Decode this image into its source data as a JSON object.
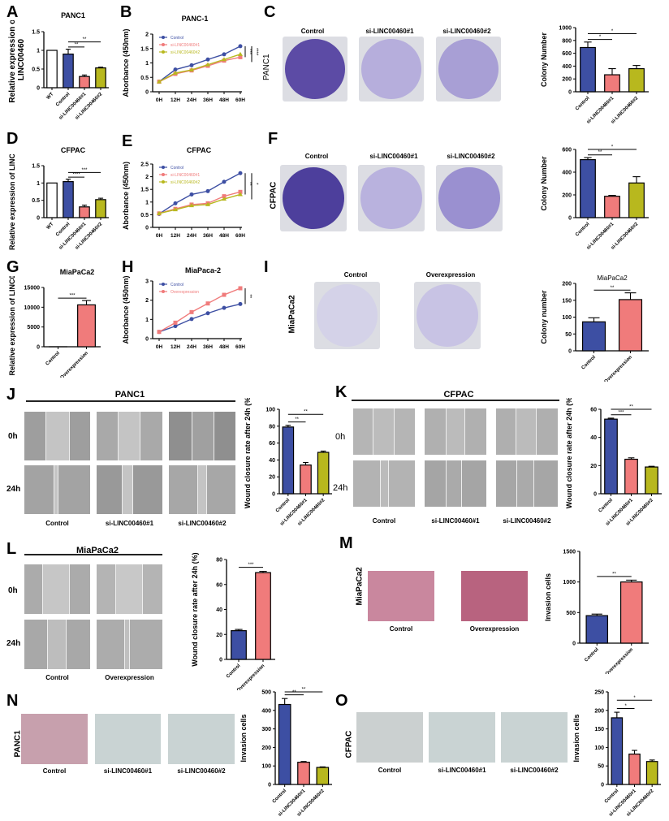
{
  "colors": {
    "control": "#3d4fa3",
    "si1": "#f07b7b",
    "si2": "#b8b81e",
    "wt": "#ffffff",
    "overexpression": "#f07b7b",
    "colony_stain": "#5a4aa8",
    "invasion_stain": "#c9306a"
  },
  "groups": {
    "control": "Control",
    "si1": "si-LINC00460#1",
    "si2": "si-LINC00460#2",
    "overexpression": "Overexpression",
    "wt": "WT"
  },
  "timepoints": [
    "0h",
    "24h"
  ],
  "panels": {
    "A": {
      "label": "A",
      "title": "PANC1",
      "ylabel_line1": "Relative expression of",
      "ylabel_line2": "LINC00460"
    },
    "B": {
      "label": "B",
      "title": "PANC-1",
      "ylabel": "Aborbance (450nm)"
    },
    "C": {
      "label": "C",
      "row_label": "PANC1",
      "ylabel": "Colony Number"
    },
    "D": {
      "label": "D",
      "title": "CFPAC",
      "ylabel_line1": "Relative expression of",
      "ylabel_line2": "LINC00460"
    },
    "E": {
      "label": "E",
      "title": "CFPAC",
      "ylabel": "Aborbance (450nm)"
    },
    "F": {
      "label": "F",
      "row_label": "CFPAC",
      "ylabel": "Colony Number"
    },
    "G": {
      "label": "G",
      "title": "MiaPaCa2",
      "ylabel_line1": "Relative expression of",
      "ylabel_line2": "LINC00460"
    },
    "H": {
      "label": "H",
      "title": "MiaPaca-2",
      "ylabel": "Aborbance (450nm)"
    },
    "I": {
      "label": "I",
      "row_label": "MiaPaCa2",
      "chart_title": "MiaPaCa2",
      "ylabel": "Colony number"
    },
    "J": {
      "label": "J",
      "header": "PANC1",
      "ylabel": "Wound closure rate after 24h (%)"
    },
    "K": {
      "label": "K",
      "header": "CFPAC",
      "ylabel": "Wound closure rate after 24h (%)"
    },
    "L": {
      "label": "L",
      "header": "MiaPaCa2",
      "ylabel": "Wound closure rate after 24h (%)"
    },
    "M": {
      "label": "M",
      "row_label": "MiaPaCa2",
      "ylabel": "Invasion cells"
    },
    "N": {
      "label": "N",
      "row_label": "PANC1",
      "ylabel": "Invasion cells"
    },
    "O": {
      "label": "O",
      "row_label": "CFPAC",
      "ylabel": "Invasion cells"
    }
  },
  "chart_data": [
    {
      "panel": "A",
      "type": "bar",
      "title": "PANC1",
      "ylabel": "Relative expression of LINC00460",
      "categories": [
        "WT",
        "Control",
        "si-LINC00460#1",
        "si-LINC00460#2"
      ],
      "values": [
        1.0,
        0.9,
        0.3,
        0.53
      ],
      "errors": [
        0,
        0.13,
        0.04,
        0.02
      ],
      "ylim": [
        0,
        1.5
      ],
      "yticks": [
        0.0,
        0.5,
        1.0,
        1.5
      ],
      "significance": [
        {
          "pair": [
            "Control",
            "si-LINC00460#1"
          ],
          "mark": "**"
        },
        {
          "pair": [
            "Control",
            "si-LINC00460#2"
          ],
          "mark": "**"
        }
      ]
    },
    {
      "panel": "B",
      "type": "line",
      "title": "PANC-1",
      "ylabel": "Aborbance (450nm)",
      "x": [
        "0H",
        "12H",
        "24H",
        "36H",
        "48H",
        "60H"
      ],
      "series": [
        {
          "name": "Control",
          "values": [
            0.35,
            0.77,
            0.92,
            1.12,
            1.3,
            1.58
          ]
        },
        {
          "name": "si-LINC00460#1",
          "values": [
            0.35,
            0.62,
            0.74,
            0.9,
            1.08,
            1.2
          ]
        },
        {
          "name": "si-LINC00460#2",
          "values": [
            0.35,
            0.65,
            0.76,
            0.94,
            1.12,
            1.3
          ]
        }
      ],
      "ylim": [
        0,
        2.0
      ],
      "yticks": [
        0.0,
        0.5,
        1.0,
        1.5,
        2.0
      ],
      "significance": [
        "***",
        "****"
      ]
    },
    {
      "panel": "C",
      "type": "bar",
      "ylabel": "Colony Number",
      "categories": [
        "Control",
        "si-LINC00460#1",
        "si-LINC00460#2"
      ],
      "values": [
        690,
        265,
        360
      ],
      "errors": [
        85,
        95,
        50
      ],
      "ylim": [
        0,
        1000
      ],
      "yticks": [
        0,
        200,
        400,
        600,
        800,
        1000
      ],
      "significance": [
        {
          "pair": [
            "Control",
            "si-LINC00460#1"
          ],
          "mark": "*"
        },
        {
          "pair": [
            "Control",
            "si-LINC00460#2"
          ],
          "mark": "*"
        }
      ]
    },
    {
      "panel": "D",
      "type": "bar",
      "title": "CFPAC",
      "ylabel": "Relative expression of LINC00460",
      "categories": [
        "WT",
        "Control",
        "si-LINC00460#1",
        "si-LINC00460#2"
      ],
      "values": [
        1.0,
        1.04,
        0.31,
        0.52
      ],
      "errors": [
        0,
        0.07,
        0.05,
        0.04
      ],
      "ylim": [
        0,
        1.5
      ],
      "yticks": [
        0.0,
        0.5,
        1.0,
        1.5
      ],
      "significance": [
        {
          "pair": [
            "Control",
            "si-LINC00460#1"
          ],
          "mark": "****"
        },
        {
          "pair": [
            "Control",
            "si-LINC00460#2"
          ],
          "mark": "***"
        }
      ]
    },
    {
      "panel": "E",
      "type": "line",
      "title": "CFPAC",
      "ylabel": "Aborbance (450nm)",
      "x": [
        "0H",
        "12H",
        "24H",
        "36H",
        "48H",
        "60H"
      ],
      "series": [
        {
          "name": "Control",
          "values": [
            0.53,
            0.95,
            1.3,
            1.43,
            1.8,
            2.14
          ]
        },
        {
          "name": "si-LINC00460#1",
          "values": [
            0.55,
            0.73,
            0.9,
            0.95,
            1.23,
            1.4
          ]
        },
        {
          "name": "si-LINC00460#2",
          "values": [
            0.55,
            0.7,
            0.86,
            0.9,
            1.12,
            1.3
          ]
        }
      ],
      "ylim": [
        0,
        2.5
      ],
      "yticks": [
        0.0,
        0.5,
        1.0,
        1.5,
        2.0,
        2.5
      ],
      "significance": [
        "**",
        "*"
      ]
    },
    {
      "panel": "F",
      "type": "bar",
      "ylabel": "Colony Number",
      "categories": [
        "Control",
        "si-LINC00460#1",
        "si-LINC00460#2"
      ],
      "values": [
        510,
        188,
        305
      ],
      "errors": [
        18,
        8,
        55
      ],
      "ylim": [
        0,
        600
      ],
      "yticks": [
        0,
        200,
        400,
        600
      ],
      "significance": [
        {
          "pair": [
            "Control",
            "si-LINC00460#1"
          ],
          "mark": "**"
        },
        {
          "pair": [
            "Control",
            "si-LINC00460#2"
          ],
          "mark": "*"
        }
      ]
    },
    {
      "panel": "G",
      "type": "bar",
      "title": "MiaPaCa2",
      "ylabel": "Relative expression of LINC00460",
      "categories": [
        "Control",
        "Overexpression"
      ],
      "values": [
        1,
        10600
      ],
      "errors": [
        0,
        1100
      ],
      "ylim": [
        0,
        15000
      ],
      "yticks": [
        0,
        5000,
        10000,
        15000
      ],
      "significance": [
        {
          "pair": [
            "Control",
            "Overexpression"
          ],
          "mark": "***"
        }
      ]
    },
    {
      "panel": "H",
      "type": "line",
      "title": "MiaPaca-2",
      "ylabel": "Aborbance (450nm)",
      "x": [
        "0H",
        "12H",
        "24H",
        "36H",
        "48H",
        "60H"
      ],
      "series": [
        {
          "name": "Control",
          "values": [
            0.35,
            0.65,
            1.02,
            1.32,
            1.6,
            1.8
          ]
        },
        {
          "name": "Overexpression",
          "values": [
            0.35,
            0.83,
            1.38,
            1.83,
            2.28,
            2.62
          ]
        }
      ],
      "ylim": [
        0,
        3
      ],
      "yticks": [
        0,
        1,
        2,
        3
      ],
      "significance": [
        "**"
      ]
    },
    {
      "panel": "I",
      "type": "bar",
      "title": "MiaPaCa2",
      "ylabel": "Colony number",
      "categories": [
        "Control",
        "Overexpression"
      ],
      "values": [
        86,
        152
      ],
      "errors": [
        12,
        20
      ],
      "ylim": [
        0,
        200
      ],
      "yticks": [
        0,
        50,
        100,
        150,
        200
      ],
      "significance": [
        {
          "pair": [
            "Control",
            "Overexpression"
          ],
          "mark": "**"
        }
      ]
    },
    {
      "panel": "J",
      "type": "bar",
      "ylabel": "Wound closure rate after 24h (%)",
      "categories": [
        "Control",
        "si-LINC00460#1",
        "si-LINC00460#2"
      ],
      "values": [
        79,
        34,
        49
      ],
      "errors": [
        2,
        3,
        1.5
      ],
      "ylim": [
        0,
        100
      ],
      "yticks": [
        0,
        20,
        40,
        60,
        80,
        100
      ],
      "significance": [
        {
          "pair": [
            "Control",
            "si-LINC00460#1"
          ],
          "mark": "**"
        },
        {
          "pair": [
            "Control",
            "si-LINC00460#2"
          ],
          "mark": "**"
        }
      ]
    },
    {
      "panel": "K",
      "type": "bar",
      "ylabel": "Wound closure rate after 24h (%)",
      "categories": [
        "Control",
        "si-LINC00460#1",
        "si-LINC00460#2"
      ],
      "values": [
        53,
        24.5,
        19
      ],
      "errors": [
        0.7,
        1,
        0.5
      ],
      "ylim": [
        0,
        60
      ],
      "yticks": [
        0,
        20,
        40,
        60
      ],
      "significance": [
        {
          "pair": [
            "Control",
            "si-LINC00460#1"
          ],
          "mark": "***"
        },
        {
          "pair": [
            "Control",
            "si-LINC00460#2"
          ],
          "mark": "**"
        }
      ]
    },
    {
      "panel": "L",
      "type": "bar",
      "ylabel": "Wound closure rate after 24h (%)",
      "categories": [
        "Control",
        "Overexpression"
      ],
      "values": [
        23,
        69.5
      ],
      "errors": [
        1,
        1
      ],
      "ylim": [
        0,
        80
      ],
      "yticks": [
        0,
        20,
        40,
        60,
        80
      ],
      "significance": [
        {
          "pair": [
            "Control",
            "Overexpression"
          ],
          "mark": "***"
        }
      ]
    },
    {
      "panel": "M",
      "type": "bar",
      "ylabel": "Invasion cells",
      "categories": [
        "Control",
        "Overexpression"
      ],
      "values": [
        450,
        1000
      ],
      "errors": [
        25,
        30
      ],
      "ylim": [
        0,
        1500
      ],
      "yticks": [
        0,
        500,
        1000,
        1500
      ],
      "significance": [
        {
          "pair": [
            "Control",
            "Overexpression"
          ],
          "mark": "**"
        }
      ]
    },
    {
      "panel": "N",
      "type": "bar",
      "ylabel": "Invasion cells",
      "categories": [
        "Control",
        "si-LINC00460#1",
        "si-LINC00460#2"
      ],
      "values": [
        432,
        120,
        92
      ],
      "errors": [
        32,
        4,
        3
      ],
      "ylim": [
        0,
        500
      ],
      "yticks": [
        0,
        100,
        200,
        300,
        400,
        500
      ],
      "significance": [
        {
          "pair": [
            "Control",
            "si-LINC00460#1"
          ],
          "mark": "**"
        },
        {
          "pair": [
            "Control",
            "si-LINC00460#2"
          ],
          "mark": "**"
        }
      ]
    },
    {
      "panel": "O",
      "type": "bar",
      "ylabel": "Invasion cells",
      "categories": [
        "Control",
        "si-LINC00460#1",
        "si-LINC00460#2"
      ],
      "values": [
        180,
        82,
        62
      ],
      "errors": [
        15,
        10,
        4
      ],
      "ylim": [
        0,
        250
      ],
      "yticks": [
        0,
        50,
        100,
        150,
        200,
        250
      ],
      "significance": [
        {
          "pair": [
            "Control",
            "si-LINC00460#1"
          ],
          "mark": "*"
        },
        {
          "pair": [
            "Control",
            "si-LINC00460#2"
          ],
          "mark": "*"
        }
      ]
    }
  ]
}
